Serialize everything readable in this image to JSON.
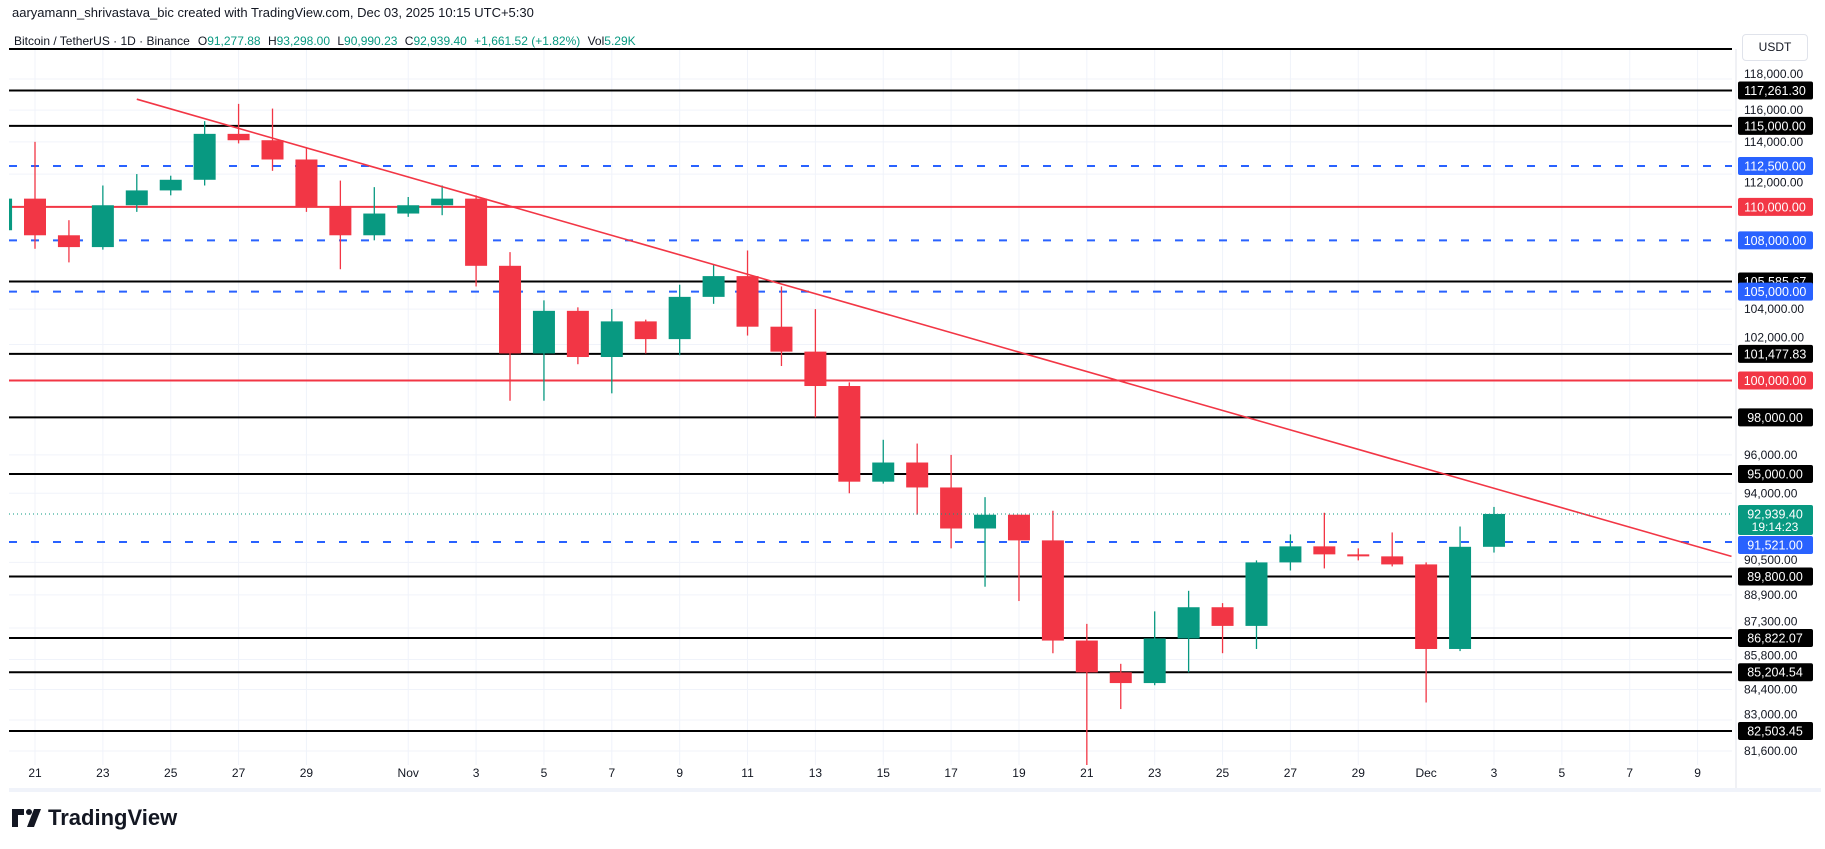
{
  "header": {
    "credit": "aaryamann_shrivastava_bic created with TradingView.com, Dec 03, 2025 10:15 UTC+5:30",
    "symbol": "Bitcoin / TetherUS · 1D · Binance",
    "open_label": "O",
    "open": "91,277.88",
    "high_label": "H",
    "high": "93,298.00",
    "low_label": "L",
    "low": "90,990.23",
    "close_label": "C",
    "close": "92,939.40",
    "change": "+1,661.52 (+1.82%)",
    "vol_label": "Vol",
    "vol": "5.29K"
  },
  "price_axis": {
    "currency_button": "USDT"
  },
  "branding": {
    "logo_text": "TradingView"
  },
  "colors": {
    "up": "#089981",
    "down": "#f23645",
    "support_blue": "#2962ff",
    "level_black": "#000000",
    "level_red": "#f23645",
    "trendline": "#f23645"
  },
  "chart_data": {
    "type": "candlestick",
    "interval": "1D",
    "y_scale": "log",
    "ylim": [
      81000,
      120000
    ],
    "xlim": [
      "2025-10-20",
      "2025-12-11"
    ],
    "grid": true,
    "x_ticks": [
      "21",
      "23",
      "25",
      "27",
      "29",
      "Nov",
      "3",
      "5",
      "7",
      "9",
      "11",
      "13",
      "15",
      "17",
      "19",
      "21",
      "23",
      "25",
      "27",
      "29",
      "Dec",
      "3",
      "5",
      "7",
      "9"
    ],
    "x_tick_dates": [
      "2025-10-21",
      "2025-10-23",
      "2025-10-25",
      "2025-10-27",
      "2025-10-29",
      "2025-11-01",
      "2025-11-03",
      "2025-11-05",
      "2025-11-07",
      "2025-11-09",
      "2025-11-11",
      "2025-11-13",
      "2025-11-15",
      "2025-11-17",
      "2025-11-19",
      "2025-11-21",
      "2025-11-23",
      "2025-11-25",
      "2025-11-27",
      "2025-11-29",
      "2025-12-01",
      "2025-12-03",
      "2025-12-05",
      "2025-12-07",
      "2025-12-09"
    ],
    "y_ticks": [
      "118,000.00",
      "116,000.00",
      "114,000.00",
      "112,000.00",
      "104,000.00",
      "102,000.00",
      "96,000.00",
      "94,000.00",
      "90,500.00",
      "88,900.00",
      "87,300.00",
      "85,800.00",
      "84,400.00",
      "83,000.00",
      "81,600.00"
    ],
    "y_tick_values": [
      118000,
      116000,
      114000,
      112000,
      104000,
      102000,
      96000,
      94000,
      90500,
      88900,
      87300,
      85800,
      84400,
      83000,
      81600
    ],
    "candles": [
      {
        "d": "2025-10-20",
        "o": 108600,
        "h": 111700,
        "l": 107400,
        "c": 110500
      },
      {
        "d": "2025-10-21",
        "o": 110500,
        "h": 114000,
        "l": 107500,
        "c": 108300
      },
      {
        "d": "2025-10-22",
        "o": 108300,
        "h": 109200,
        "l": 106700,
        "c": 107600
      },
      {
        "d": "2025-10-23",
        "o": 107600,
        "h": 111300,
        "l": 107450,
        "c": 110100
      },
      {
        "d": "2025-10-24",
        "o": 110100,
        "h": 112000,
        "l": 109700,
        "c": 111000
      },
      {
        "d": "2025-10-25",
        "o": 111000,
        "h": 111900,
        "l": 110700,
        "c": 111650
      },
      {
        "d": "2025-10-26",
        "o": 111650,
        "h": 115300,
        "l": 111300,
        "c": 114500
      },
      {
        "d": "2025-10-27",
        "o": 114500,
        "h": 116400,
        "l": 113900,
        "c": 114100
      },
      {
        "d": "2025-10-28",
        "o": 114100,
        "h": 116100,
        "l": 112200,
        "c": 112900
      },
      {
        "d": "2025-10-29",
        "o": 112900,
        "h": 113600,
        "l": 109700,
        "c": 110000
      },
      {
        "d": "2025-10-30",
        "o": 110000,
        "h": 111600,
        "l": 106300,
        "c": 108300
      },
      {
        "d": "2025-10-31",
        "o": 108300,
        "h": 111200,
        "l": 108000,
        "c": 109600
      },
      {
        "d": "2025-11-01",
        "o": 109600,
        "h": 110600,
        "l": 109400,
        "c": 110100
      },
      {
        "d": "2025-11-02",
        "o": 110100,
        "h": 111300,
        "l": 109500,
        "c": 110500
      },
      {
        "d": "2025-11-03",
        "o": 110500,
        "h": 110700,
        "l": 105300,
        "c": 106500
      },
      {
        "d": "2025-11-04",
        "o": 106500,
        "h": 107300,
        "l": 98900,
        "c": 101500
      },
      {
        "d": "2025-11-05",
        "o": 101500,
        "h": 104500,
        "l": 98900,
        "c": 103900
      },
      {
        "d": "2025-11-06",
        "o": 103900,
        "h": 104100,
        "l": 100900,
        "c": 101300
      },
      {
        "d": "2025-11-07",
        "o": 101300,
        "h": 104000,
        "l": 99300,
        "c": 103300
      },
      {
        "d": "2025-11-08",
        "o": 103300,
        "h": 103400,
        "l": 101500,
        "c": 102300
      },
      {
        "d": "2025-11-09",
        "o": 102300,
        "h": 105400,
        "l": 101400,
        "c": 104700
      },
      {
        "d": "2025-11-10",
        "o": 104700,
        "h": 106600,
        "l": 104300,
        "c": 105900
      },
      {
        "d": "2025-11-11",
        "o": 105900,
        "h": 107400,
        "l": 102500,
        "c": 103000
      },
      {
        "d": "2025-11-12",
        "o": 103000,
        "h": 105300,
        "l": 100800,
        "c": 101600
      },
      {
        "d": "2025-11-13",
        "o": 101600,
        "h": 104000,
        "l": 98000,
        "c": 99700
      },
      {
        "d": "2025-11-14",
        "o": 99700,
        "h": 99900,
        "l": 94000,
        "c": 94600
      },
      {
        "d": "2025-11-15",
        "o": 94600,
        "h": 96800,
        "l": 94500,
        "c": 95600
      },
      {
        "d": "2025-11-16",
        "o": 95600,
        "h": 96600,
        "l": 92900,
        "c": 94300
      },
      {
        "d": "2025-11-17",
        "o": 94300,
        "h": 96000,
        "l": 91200,
        "c": 92200
      },
      {
        "d": "2025-11-18",
        "o": 92200,
        "h": 93800,
        "l": 89300,
        "c": 92900
      },
      {
        "d": "2025-11-19",
        "o": 92900,
        "h": 92900,
        "l": 88600,
        "c": 91600
      },
      {
        "d": "2025-11-20",
        "o": 91600,
        "h": 93100,
        "l": 86100,
        "c": 86700
      },
      {
        "d": "2025-11-21",
        "o": 86700,
        "h": 87500,
        "l": 80600,
        "c": 85200
      },
      {
        "d": "2025-11-22",
        "o": 85200,
        "h": 85600,
        "l": 83500,
        "c": 84700
      },
      {
        "d": "2025-11-23",
        "o": 84700,
        "h": 88100,
        "l": 84600,
        "c": 86800
      },
      {
        "d": "2025-11-24",
        "o": 86800,
        "h": 89100,
        "l": 85200,
        "c": 88300
      },
      {
        "d": "2025-11-25",
        "o": 88300,
        "h": 88500,
        "l": 86100,
        "c": 87400
      },
      {
        "d": "2025-11-26",
        "o": 87400,
        "h": 90600,
        "l": 86300,
        "c": 90500
      },
      {
        "d": "2025-11-27",
        "o": 90500,
        "h": 91900,
        "l": 90100,
        "c": 91300
      },
      {
        "d": "2025-11-28",
        "o": 91300,
        "h": 93000,
        "l": 90200,
        "c": 90900
      },
      {
        "d": "2025-11-29",
        "o": 90900,
        "h": 91200,
        "l": 90600,
        "c": 90800
      },
      {
        "d": "2025-11-30",
        "o": 90800,
        "h": 92000,
        "l": 90300,
        "c": 90400
      },
      {
        "d": "2025-12-01",
        "o": 90400,
        "h": 90500,
        "l": 83800,
        "c": 86300
      },
      {
        "d": "2025-12-02",
        "o": 86300,
        "h": 92300,
        "l": 86200,
        "c": 91277.88
      },
      {
        "d": "2025-12-03",
        "o": 91277.88,
        "h": 93298,
        "l": 90990.23,
        "c": 92939.4
      }
    ],
    "horizontal_levels": [
      {
        "price": 117261.3,
        "label": "117,261.30",
        "style": "black"
      },
      {
        "price": 115000,
        "label": "115,000.00",
        "style": "black"
      },
      {
        "price": 112500,
        "label": "112,500.00",
        "style": "blue-dashed"
      },
      {
        "price": 110000,
        "label": "110,000.00",
        "style": "red"
      },
      {
        "price": 108000,
        "label": "108,000.00",
        "style": "blue-dashed"
      },
      {
        "price": 105585.67,
        "label": "105,585.67",
        "style": "black"
      },
      {
        "price": 105000,
        "label": "105,000.00",
        "style": "blue-dashed"
      },
      {
        "price": 101477.83,
        "label": "101,477.83",
        "style": "black"
      },
      {
        "price": 100000,
        "label": "100,000.00",
        "style": "red"
      },
      {
        "price": 98000,
        "label": "98,000.00",
        "style": "black"
      },
      {
        "price": 95000,
        "label": "95,000.00",
        "style": "black"
      },
      {
        "price": 91521.0,
        "label": "91,521.00",
        "style": "blue-dashed"
      },
      {
        "price": 89800,
        "label": "89,800.00",
        "style": "black"
      },
      {
        "price": 86822.07,
        "label": "86,822.07",
        "style": "black"
      },
      {
        "price": 85204.54,
        "label": "85,204.54",
        "style": "black"
      },
      {
        "price": 82503.45,
        "label": "82,503.45",
        "style": "black"
      }
    ],
    "trendline": {
      "from": {
        "d": "2025-10-24",
        "price": 116700
      },
      "to": {
        "d": "2025-12-10",
        "price": 90800
      }
    },
    "current_price": {
      "price": 92939.4,
      "label": "92,939.40",
      "countdown": "19:14:23"
    }
  }
}
